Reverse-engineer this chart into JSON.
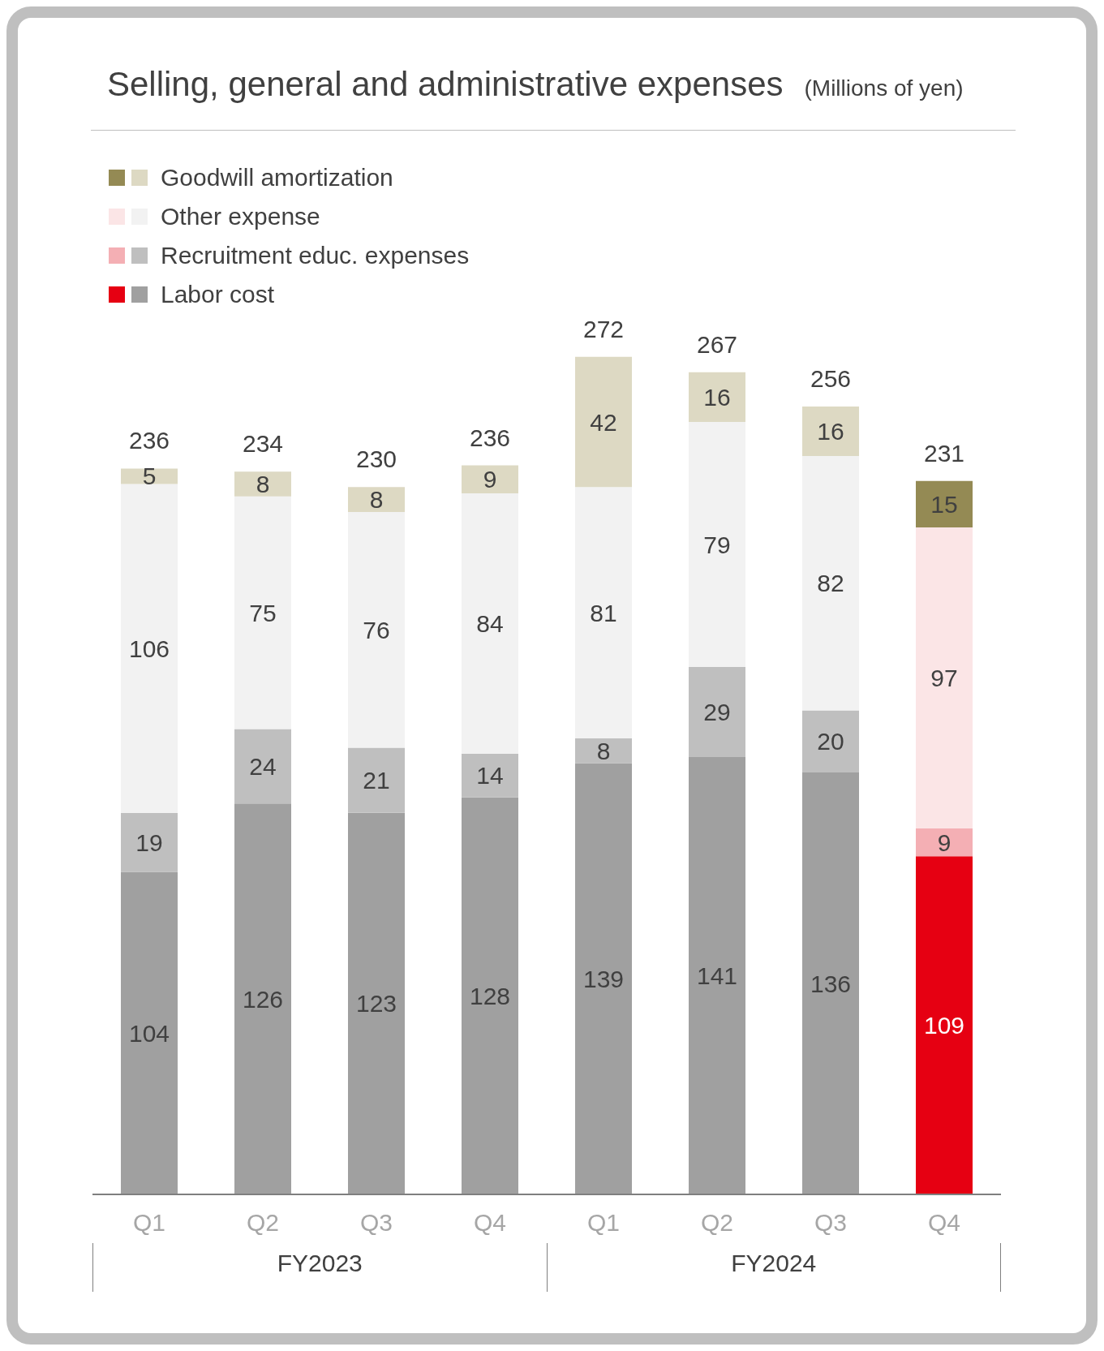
{
  "chart_data": {
    "type": "bar",
    "title": "Selling, general and administrative expenses",
    "subtitle": "(Millions of yen)",
    "categories": [
      "Q1",
      "Q2",
      "Q3",
      "Q4",
      "Q1",
      "Q2",
      "Q3",
      "Q4"
    ],
    "annotations": [
      "FY2023",
      "FY2024"
    ],
    "stacked": true,
    "data_labels": true,
    "legend": "top left",
    "totals": [
      "236",
      "234",
      "230",
      "236",
      "272",
      "267",
      "256",
      "231"
    ],
    "series": [
      {
        "name": "Labor cost",
        "colors": [
          "#a0a0a0",
          "#a0a0a0",
          "#a0a0a0",
          "#a0a0a0",
          "#a0a0a0",
          "#a0a0a0",
          "#a0a0a0",
          "#e60012"
        ],
        "values": [
          104,
          126,
          123,
          128,
          139,
          141,
          136,
          109
        ]
      },
      {
        "name": "Recruitment educ. expenses",
        "colors": [
          "#bfbfbf",
          "#bfbfbf",
          "#bfbfbf",
          "#bfbfbf",
          "#bfbfbf",
          "#bfbfbf",
          "#bfbfbf",
          "#f4afb4"
        ],
        "values": [
          19,
          24,
          21,
          14,
          8,
          29,
          20,
          9
        ]
      },
      {
        "name": "Other expense",
        "colors": [
          "#f2f2f2",
          "#f2f2f2",
          "#f2f2f2",
          "#f2f2f2",
          "#f2f2f2",
          "#f2f2f2",
          "#f2f2f2",
          "#fbe5e6"
        ],
        "values": [
          106,
          75,
          76,
          84,
          81,
          79,
          82,
          97
        ]
      },
      {
        "name": "Goodwill amortization",
        "colors": [
          "#ddd9c3",
          "#ddd9c3",
          "#ddd9c3",
          "#ddd9c3",
          "#ddd9c3",
          "#ddd9c3",
          "#ddd9c3",
          "#948a54"
        ],
        "values": [
          5,
          8,
          8,
          9,
          42,
          16,
          16,
          15
        ]
      }
    ]
  }
}
